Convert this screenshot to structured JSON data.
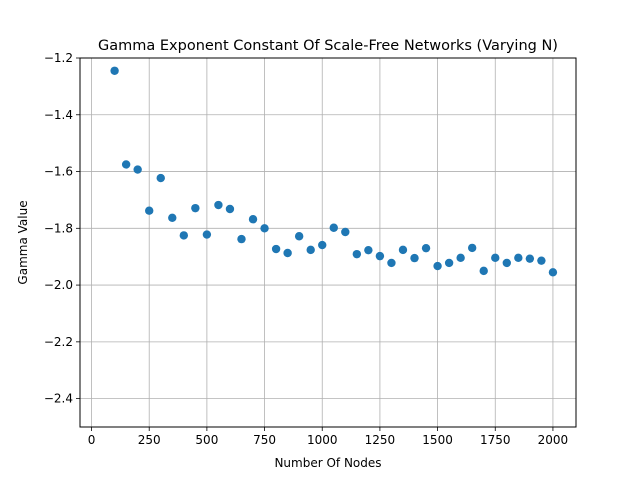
{
  "chart_data": {
    "type": "scatter",
    "title": "Gamma Exponent Constant Of Scale-Free Networks (Varying N)",
    "xlabel": "Number Of Nodes",
    "ylabel": "Gamma Value",
    "xlim": [
      -50,
      2100
    ],
    "ylim": [
      -2.5,
      -1.2
    ],
    "xticks": [
      0,
      250,
      500,
      750,
      1000,
      1250,
      1500,
      1750,
      2000
    ],
    "xtick_labels": [
      "0",
      "250",
      "500",
      "750",
      "1000",
      "1250",
      "1500",
      "1750",
      "2000"
    ],
    "yticks": [
      -2.4,
      -2.2,
      -2.0,
      -1.8,
      -1.6,
      -1.4,
      -1.2
    ],
    "ytick_labels": [
      "−2.4",
      "−2.2",
      "−2.0",
      "−1.8",
      "−1.6",
      "−1.4",
      "−1.2"
    ],
    "grid": true,
    "marker_color": "#1f77b4",
    "series": [
      {
        "x": [
          100,
          150,
          200,
          250,
          300,
          350,
          400,
          450,
          500,
          550,
          600,
          650,
          700,
          750,
          800,
          850,
          900,
          950,
          1000,
          1050,
          1100,
          1150,
          1200,
          1250,
          1300,
          1350,
          1400,
          1450,
          1500,
          1550,
          1600,
          1650,
          1700,
          1750,
          1800,
          1850,
          1900,
          1950,
          2000
        ],
        "y": [
          -1.245,
          -1.575,
          -1.593,
          -1.738,
          -1.623,
          -1.763,
          -1.825,
          -1.729,
          -1.822,
          -1.718,
          -1.732,
          -1.838,
          -1.768,
          -1.8,
          -1.873,
          -1.887,
          -1.828,
          -1.876,
          -1.859,
          -1.798,
          -1.813,
          -1.891,
          -1.877,
          -1.898,
          -1.922,
          -1.876,
          -1.905,
          -1.87,
          -1.933,
          -1.922,
          -1.904,
          -1.869,
          -1.95,
          -1.904,
          -1.922,
          -1.904,
          -1.907,
          -1.914,
          -1.955
        ]
      }
    ]
  }
}
